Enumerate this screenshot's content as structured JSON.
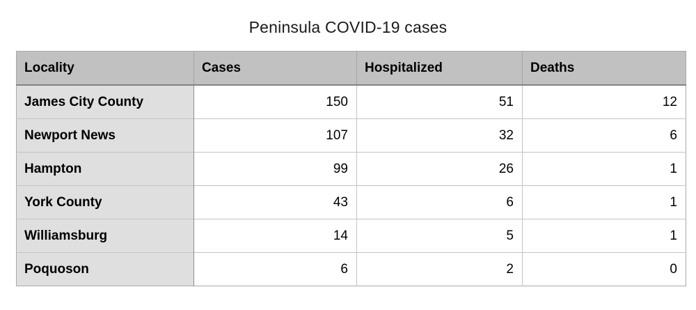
{
  "title": "Peninsula COVID-19 cases",
  "table": {
    "columns": [
      "Locality",
      "Cases",
      "Hospitalized",
      "Deaths"
    ],
    "rows": [
      {
        "locality": "James City County",
        "cases": "150",
        "hospitalized": "51",
        "deaths": "12"
      },
      {
        "locality": "Newport News",
        "cases": "107",
        "hospitalized": "32",
        "deaths": "6"
      },
      {
        "locality": "Hampton",
        "cases": "99",
        "hospitalized": "26",
        "deaths": "1"
      },
      {
        "locality": "York County",
        "cases": "43",
        "hospitalized": "6",
        "deaths": "1"
      },
      {
        "locality": "Williamsburg",
        "cases": "14",
        "hospitalized": "5",
        "deaths": "1"
      },
      {
        "locality": "Poquoson",
        "cases": "6",
        "hospitalized": "2",
        "deaths": "0"
      }
    ]
  },
  "colors": {
    "header_bg": "#c1c1c1",
    "row_label_bg": "#dfdfdf",
    "cell_bg": "#ffffff",
    "grid_line": "#c3c3c3",
    "header_divider": "#828282",
    "text": "#000000"
  },
  "chart_data": {
    "type": "table",
    "title": "Peninsula COVID-19 cases",
    "columns": [
      "Locality",
      "Cases",
      "Hospitalized",
      "Deaths"
    ],
    "categories": [
      "James City County",
      "Newport News",
      "Hampton",
      "York County",
      "Williamsburg",
      "Poquoson"
    ],
    "series": [
      {
        "name": "Cases",
        "values": [
          150,
          107,
          99,
          43,
          14,
          6
        ]
      },
      {
        "name": "Hospitalized",
        "values": [
          51,
          32,
          26,
          6,
          5,
          2
        ]
      },
      {
        "name": "Deaths",
        "values": [
          12,
          6,
          1,
          1,
          1,
          0
        ]
      }
    ],
    "layout": {
      "header_aligned": "left",
      "values_aligned": "right",
      "grid": true
    }
  }
}
